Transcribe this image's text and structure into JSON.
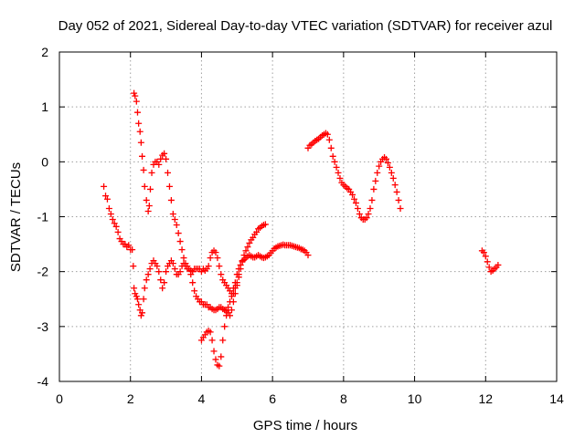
{
  "chart_data": {
    "type": "scatter",
    "title": "Day 052 of 2021, Sidereal Day-to-day VTEC variation (SDTVAR) for receiver azul",
    "xlabel": "GPS time / hours",
    "ylabel": "SDTVAR / TECUs",
    "xlim": [
      0,
      14
    ],
    "ylim": [
      -4,
      2
    ],
    "x_ticks": [
      0,
      2,
      4,
      6,
      8,
      10,
      12,
      14
    ],
    "x_tick_labels": [
      "0",
      "2",
      "4",
      "6",
      "8",
      "10",
      "12",
      "14"
    ],
    "y_ticks": [
      -4,
      -3,
      -2,
      -1,
      0,
      1,
      2
    ],
    "y_tick_labels": [
      "-4",
      "-3",
      "-2",
      "-1",
      "0",
      "1",
      "2"
    ],
    "grid": true,
    "legend": "none",
    "marker": "plus",
    "color": "#ff0000",
    "series": [
      {
        "points": [
          [
            1.25,
            -0.45
          ],
          [
            1.3,
            -0.62
          ],
          [
            1.35,
            -0.68
          ],
          [
            1.4,
            -0.85
          ],
          [
            1.45,
            -0.95
          ],
          [
            1.5,
            -1.05
          ],
          [
            1.55,
            -1.12
          ],
          [
            1.6,
            -1.18
          ],
          [
            1.65,
            -1.28
          ],
          [
            1.7,
            -1.4
          ],
          [
            1.75,
            -1.45
          ],
          [
            1.8,
            -1.5
          ],
          [
            1.85,
            -1.5
          ],
          [
            1.9,
            -1.55
          ],
          [
            1.95,
            -1.52
          ],
          [
            2.0,
            -1.6
          ],
          [
            2.05,
            -1.6
          ],
          [
            2.08,
            -1.9
          ],
          [
            2.1,
            -2.3
          ],
          [
            2.13,
            -2.4
          ],
          [
            2.17,
            -2.45
          ],
          [
            2.2,
            -2.5
          ],
          [
            2.23,
            -2.6
          ],
          [
            2.27,
            -2.7
          ],
          [
            2.3,
            -2.8
          ],
          [
            2.33,
            -2.75
          ],
          [
            2.37,
            -2.5
          ],
          [
            2.4,
            -2.3
          ],
          [
            2.45,
            -2.15
          ],
          [
            2.5,
            -2.05
          ],
          [
            2.55,
            -1.95
          ],
          [
            2.6,
            -1.85
          ],
          [
            2.65,
            -1.8
          ],
          [
            2.7,
            -1.85
          ],
          [
            2.75,
            -1.9
          ],
          [
            2.8,
            -2.0
          ],
          [
            2.85,
            -2.15
          ],
          [
            2.9,
            -2.3
          ],
          [
            2.95,
            -2.2
          ],
          [
            3.0,
            -2.0
          ],
          [
            3.05,
            -1.9
          ],
          [
            3.1,
            -1.85
          ],
          [
            3.15,
            -1.8
          ],
          [
            3.2,
            -1.85
          ],
          [
            3.25,
            -1.95
          ],
          [
            3.3,
            -2.05
          ],
          [
            3.35,
            -2.05
          ],
          [
            3.4,
            -2.0
          ],
          [
            3.45,
            -1.9
          ],
          [
            3.5,
            -1.85
          ],
          [
            3.55,
            -1.9
          ],
          [
            3.6,
            -1.95
          ],
          [
            3.65,
            -1.95
          ],
          [
            3.7,
            -1.98
          ],
          [
            3.75,
            -2.0
          ],
          [
            3.8,
            -1.95
          ],
          [
            3.85,
            -1.95
          ],
          [
            3.9,
            -1.95
          ],
          [
            3.95,
            -1.95
          ],
          [
            4.0,
            -2.0
          ],
          [
            4.05,
            -1.95
          ],
          [
            4.1,
            -1.98
          ],
          [
            4.15,
            -1.95
          ],
          [
            4.2,
            -1.9
          ],
          [
            4.25,
            -1.75
          ],
          [
            4.3,
            -1.65
          ],
          [
            4.35,
            -1.62
          ],
          [
            4.4,
            -1.65
          ],
          [
            4.45,
            -1.75
          ],
          [
            4.5,
            -1.9
          ],
          [
            4.55,
            -2.05
          ],
          [
            4.6,
            -2.15
          ],
          [
            4.65,
            -2.2
          ],
          [
            4.7,
            -2.25
          ],
          [
            4.75,
            -2.3
          ],
          [
            4.8,
            -2.35
          ],
          [
            4.85,
            -2.4
          ],
          [
            4.9,
            -2.3
          ],
          [
            4.95,
            -2.2
          ],
          [
            5.0,
            -2.05
          ],
          [
            5.05,
            -1.95
          ],
          [
            5.1,
            -1.88
          ],
          [
            5.15,
            -1.82
          ],
          [
            5.2,
            -1.78
          ],
          [
            5.25,
            -1.75
          ],
          [
            5.3,
            -1.72
          ],
          [
            5.35,
            -1.7
          ],
          [
            5.4,
            -1.72
          ],
          [
            5.45,
            -1.74
          ],
          [
            5.5,
            -1.74
          ],
          [
            5.55,
            -1.72
          ],
          [
            5.6,
            -1.7
          ],
          [
            5.65,
            -1.72
          ],
          [
            5.7,
            -1.74
          ],
          [
            5.75,
            -1.75
          ],
          [
            5.8,
            -1.74
          ],
          [
            5.85,
            -1.72
          ],
          [
            5.9,
            -1.7
          ],
          [
            5.95,
            -1.66
          ],
          [
            6.0,
            -1.62
          ],
          [
            6.05,
            -1.58
          ],
          [
            6.1,
            -1.56
          ],
          [
            6.15,
            -1.54
          ],
          [
            6.2,
            -1.53
          ],
          [
            6.25,
            -1.52
          ],
          [
            6.3,
            -1.51
          ],
          [
            6.35,
            -1.52
          ],
          [
            6.4,
            -1.52
          ],
          [
            6.45,
            -1.52
          ],
          [
            6.5,
            -1.52
          ],
          [
            6.55,
            -1.53
          ],
          [
            6.6,
            -1.54
          ],
          [
            6.65,
            -1.55
          ],
          [
            6.7,
            -1.56
          ],
          [
            6.75,
            -1.57
          ],
          [
            6.8,
            -1.59
          ],
          [
            6.85,
            -1.6
          ],
          [
            6.9,
            -1.62
          ],
          [
            6.95,
            -1.65
          ],
          [
            7.0,
            -1.7
          ]
        ]
      },
      {
        "points": [
          [
            2.1,
            1.25
          ],
          [
            2.13,
            1.2
          ],
          [
            2.17,
            1.1
          ],
          [
            2.2,
            0.9
          ],
          [
            2.23,
            0.7
          ],
          [
            2.27,
            0.55
          ],
          [
            2.3,
            0.35
          ],
          [
            2.33,
            0.1
          ],
          [
            2.37,
            -0.15
          ],
          [
            2.4,
            -0.45
          ],
          [
            2.45,
            -0.7
          ],
          [
            2.5,
            -0.9
          ],
          [
            2.53,
            -0.8
          ],
          [
            2.56,
            -0.5
          ],
          [
            2.6,
            -0.2
          ],
          [
            2.65,
            -0.05
          ],
          [
            2.7,
            0.0
          ],
          [
            2.75,
            0.0
          ],
          [
            2.8,
            -0.05
          ],
          [
            2.85,
            0.05
          ],
          [
            2.9,
            0.12
          ],
          [
            2.95,
            0.15
          ],
          [
            3.0,
            0.05
          ],
          [
            3.05,
            -0.2
          ],
          [
            3.1,
            -0.45
          ],
          [
            3.15,
            -0.7
          ],
          [
            3.2,
            -0.95
          ],
          [
            3.25,
            -1.05
          ],
          [
            3.3,
            -1.15
          ],
          [
            3.35,
            -1.3
          ],
          [
            3.4,
            -1.45
          ],
          [
            3.45,
            -1.6
          ],
          [
            3.5,
            -1.75
          ],
          [
            3.55,
            -1.85
          ],
          [
            3.6,
            -1.9
          ],
          [
            3.65,
            -1.95
          ],
          [
            3.7,
            -2.05
          ],
          [
            3.75,
            -2.2
          ],
          [
            3.8,
            -2.35
          ],
          [
            3.85,
            -2.45
          ],
          [
            3.9,
            -2.5
          ],
          [
            3.95,
            -2.55
          ],
          [
            4.0,
            -2.55
          ],
          [
            4.05,
            -2.6
          ],
          [
            4.1,
            -2.6
          ],
          [
            4.15,
            -2.6
          ],
          [
            4.2,
            -2.65
          ],
          [
            4.25,
            -2.65
          ],
          [
            4.3,
            -2.68
          ],
          [
            4.35,
            -2.7
          ],
          [
            4.4,
            -2.7
          ],
          [
            4.45,
            -2.68
          ],
          [
            4.5,
            -2.65
          ],
          [
            4.55,
            -2.65
          ],
          [
            4.6,
            -2.68
          ],
          [
            4.65,
            -2.7
          ],
          [
            4.7,
            -2.72
          ],
          [
            4.75,
            -2.75
          ],
          [
            4.8,
            -2.8
          ],
          [
            4.85,
            -2.7
          ],
          [
            4.9,
            -2.55
          ],
          [
            4.95,
            -2.4
          ],
          [
            5.0,
            -2.25
          ],
          [
            5.05,
            -2.1
          ],
          [
            5.1,
            -1.95
          ],
          [
            5.15,
            -1.8
          ],
          [
            5.2,
            -1.7
          ],
          [
            5.25,
            -1.62
          ],
          [
            5.3,
            -1.55
          ],
          [
            5.35,
            -1.48
          ],
          [
            5.4,
            -1.42
          ],
          [
            5.45,
            -1.38
          ],
          [
            5.5,
            -1.32
          ],
          [
            5.55,
            -1.28
          ],
          [
            5.6,
            -1.22
          ],
          [
            5.65,
            -1.2
          ],
          [
            5.7,
            -1.17
          ],
          [
            5.75,
            -1.15
          ],
          [
            5.8,
            -1.14
          ]
        ]
      },
      {
        "points": [
          [
            4.0,
            -3.25
          ],
          [
            4.05,
            -3.2
          ],
          [
            4.1,
            -3.15
          ],
          [
            4.15,
            -3.1
          ],
          [
            4.2,
            -3.08
          ],
          [
            4.25,
            -3.1
          ],
          [
            4.3,
            -3.25
          ],
          [
            4.35,
            -3.45
          ],
          [
            4.4,
            -3.6
          ],
          [
            4.45,
            -3.7
          ],
          [
            4.5,
            -3.72
          ],
          [
            4.55,
            -3.55
          ],
          [
            4.6,
            -3.25
          ],
          [
            4.65,
            -3.0
          ],
          [
            4.7,
            -2.8
          ],
          [
            4.75,
            -2.65
          ],
          [
            4.8,
            -2.55
          ],
          [
            4.85,
            -2.45
          ],
          [
            4.9,
            -2.4
          ],
          [
            4.95,
            -2.3
          ],
          [
            5.0,
            -2.2
          ],
          [
            5.05,
            -2.05
          ]
        ]
      },
      {
        "points": [
          [
            7.0,
            0.25
          ],
          [
            7.05,
            0.3
          ],
          [
            7.1,
            0.32
          ],
          [
            7.15,
            0.35
          ],
          [
            7.2,
            0.38
          ],
          [
            7.25,
            0.4
          ],
          [
            7.3,
            0.42
          ],
          [
            7.35,
            0.45
          ],
          [
            7.4,
            0.48
          ],
          [
            7.45,
            0.5
          ],
          [
            7.5,
            0.52
          ],
          [
            7.55,
            0.5
          ],
          [
            7.6,
            0.4
          ],
          [
            7.65,
            0.25
          ],
          [
            7.7,
            0.1
          ],
          [
            7.75,
            0.0
          ],
          [
            7.8,
            -0.1
          ],
          [
            7.85,
            -0.2
          ],
          [
            7.9,
            -0.3
          ],
          [
            7.95,
            -0.38
          ],
          [
            8.0,
            -0.42
          ],
          [
            8.05,
            -0.45
          ],
          [
            8.1,
            -0.48
          ],
          [
            8.15,
            -0.5
          ],
          [
            8.2,
            -0.55
          ],
          [
            8.25,
            -0.6
          ],
          [
            8.3,
            -0.68
          ],
          [
            8.35,
            -0.75
          ],
          [
            8.4,
            -0.85
          ],
          [
            8.45,
            -0.95
          ],
          [
            8.5,
            -1.02
          ],
          [
            8.55,
            -1.05
          ],
          [
            8.6,
            -1.05
          ],
          [
            8.65,
            -1.02
          ],
          [
            8.7,
            -0.95
          ],
          [
            8.75,
            -0.85
          ],
          [
            8.8,
            -0.7
          ],
          [
            8.85,
            -0.5
          ],
          [
            8.9,
            -0.35
          ],
          [
            8.95,
            -0.2
          ],
          [
            9.0,
            -0.08
          ],
          [
            9.05,
            0.0
          ],
          [
            9.1,
            0.05
          ],
          [
            9.15,
            0.08
          ],
          [
            9.2,
            0.05
          ],
          [
            9.25,
            -0.02
          ],
          [
            9.3,
            -0.1
          ],
          [
            9.35,
            -0.2
          ],
          [
            9.4,
            -0.3
          ],
          [
            9.45,
            -0.42
          ],
          [
            9.5,
            -0.55
          ],
          [
            9.55,
            -0.7
          ],
          [
            9.6,
            -0.85
          ]
        ]
      },
      {
        "points": [
          [
            11.9,
            -1.62
          ],
          [
            11.95,
            -1.65
          ],
          [
            12.0,
            -1.72
          ],
          [
            12.05,
            -1.82
          ],
          [
            12.1,
            -1.92
          ],
          [
            12.15,
            -2.0
          ],
          [
            12.2,
            -1.98
          ],
          [
            12.25,
            -1.95
          ],
          [
            12.3,
            -1.92
          ],
          [
            12.35,
            -1.88
          ]
        ]
      }
    ]
  }
}
